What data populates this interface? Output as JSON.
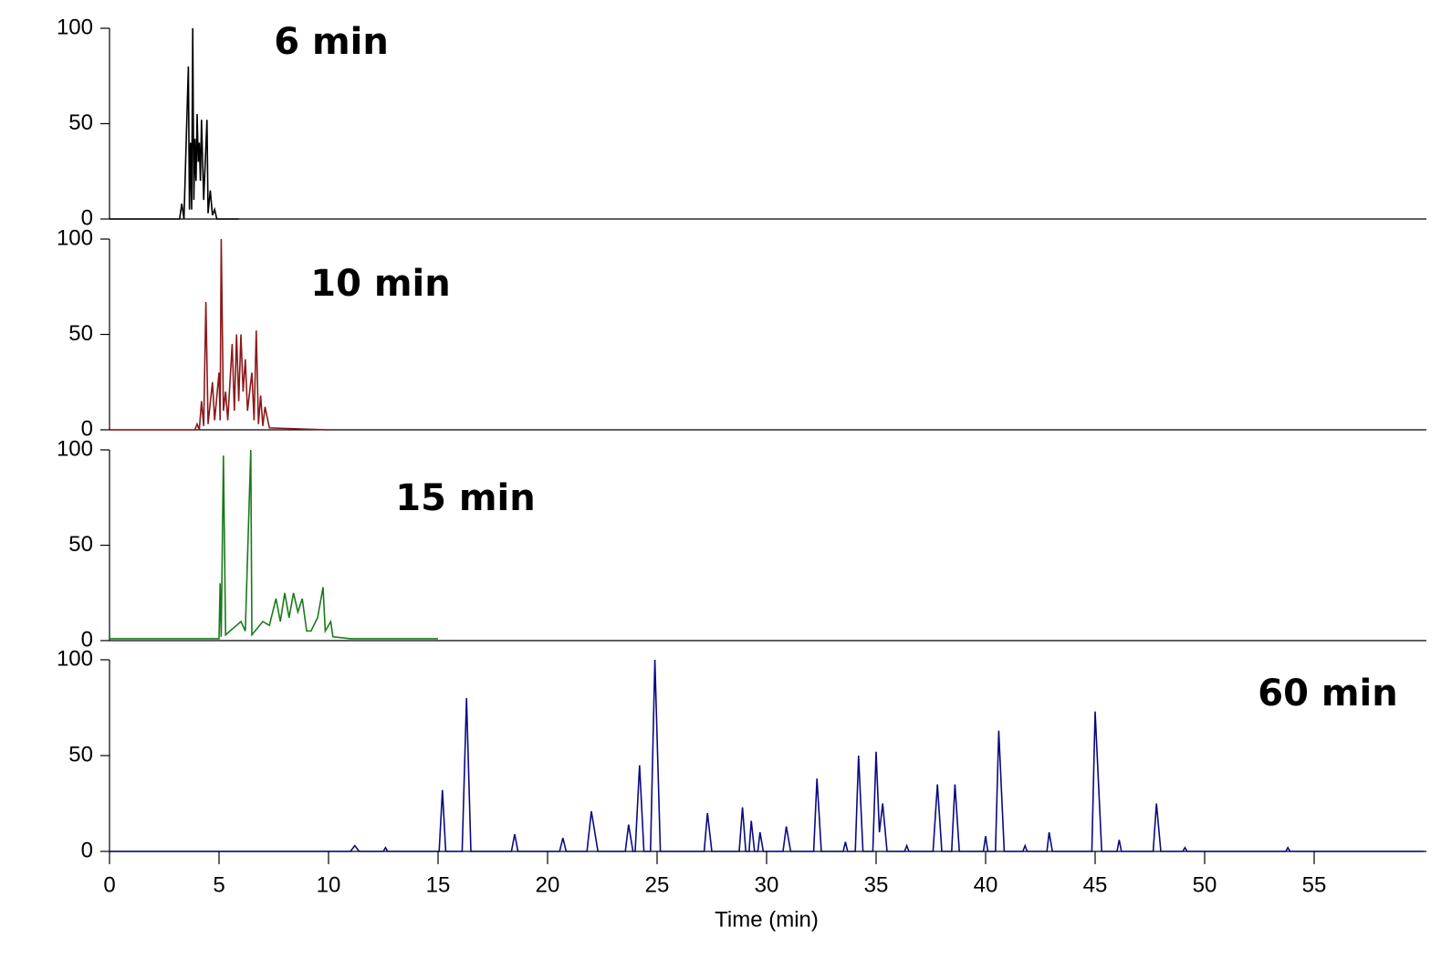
{
  "chart_data": [
    {
      "type": "line",
      "annotation": "6 min",
      "color": "#000000",
      "xlim": [
        0,
        60
      ],
      "ylim": [
        0,
        100
      ],
      "yticks": [
        0,
        50,
        100
      ],
      "x": [
        0,
        3.2,
        3.3,
        3.4,
        3.6,
        3.65,
        3.7,
        3.75,
        3.8,
        3.85,
        3.9,
        3.95,
        4.0,
        4.05,
        4.1,
        4.15,
        4.2,
        4.3,
        4.45,
        4.5,
        4.6,
        4.7,
        4.8,
        4.9,
        5.9
      ],
      "values": [
        0,
        0,
        8,
        0,
        80,
        5,
        40,
        5,
        100,
        10,
        42,
        20,
        55,
        30,
        40,
        20,
        52,
        10,
        52,
        3,
        15,
        2,
        5,
        0,
        0
      ]
    },
    {
      "type": "line",
      "annotation": "10 min",
      "color": "#8b1a1a",
      "xlim": [
        0,
        60
      ],
      "ylim": [
        0,
        100
      ],
      "yticks": [
        0,
        50,
        100
      ],
      "x": [
        0,
        3.9,
        4.0,
        4.1,
        4.2,
        4.3,
        4.4,
        4.5,
        4.7,
        4.8,
        5.0,
        5.05,
        5.1,
        5.2,
        5.3,
        5.4,
        5.6,
        5.7,
        5.8,
        5.9,
        6.0,
        6.1,
        6.2,
        6.3,
        6.5,
        6.6,
        6.7,
        6.8,
        6.9,
        7.0,
        7.1,
        7.3,
        10
      ],
      "values": [
        0,
        0,
        3,
        0,
        15,
        2,
        67,
        3,
        25,
        5,
        30,
        5,
        100,
        10,
        20,
        5,
        45,
        10,
        50,
        15,
        50,
        20,
        37,
        10,
        30,
        5,
        52,
        3,
        18,
        2,
        12,
        1,
        0
      ]
    },
    {
      "type": "line",
      "annotation": "15 min",
      "color": "#1a7a1a",
      "xlim": [
        0,
        60
      ],
      "ylim": [
        0,
        100
      ],
      "yticks": [
        0,
        50,
        100
      ],
      "x": [
        0,
        5.0,
        5.05,
        5.1,
        5.2,
        5.3,
        5.5,
        5.8,
        6.0,
        6.2,
        6.45,
        6.5,
        7.0,
        7.3,
        7.6,
        7.8,
        8.0,
        8.2,
        8.4,
        8.6,
        8.8,
        9.0,
        9.2,
        9.5,
        9.75,
        9.85,
        10.1,
        10.2,
        11,
        15
      ],
      "values": [
        1,
        1,
        30,
        2,
        97,
        3,
        5,
        8,
        10,
        5,
        100,
        3,
        10,
        8,
        22,
        10,
        25,
        12,
        25,
        15,
        22,
        5,
        5,
        12,
        28,
        5,
        10,
        2,
        1,
        1
      ]
    },
    {
      "type": "line",
      "annotation": "60 min",
      "color": "#0a0a80",
      "xlim": [
        0,
        60
      ],
      "ylim": [
        0,
        100
      ],
      "yticks": [
        0,
        50,
        100
      ],
      "xticks": [
        0,
        5,
        10,
        15,
        20,
        25,
        30,
        35,
        40,
        45,
        50,
        55
      ],
      "xlabel": "Time (min)",
      "x": [
        0,
        11.0,
        11.2,
        11.4,
        12.5,
        12.6,
        12.7,
        15.05,
        15.2,
        15.35,
        16.1,
        16.3,
        16.5,
        18.35,
        18.5,
        18.65,
        20.55,
        20.7,
        20.85,
        21.8,
        22.0,
        22.3,
        23.55,
        23.7,
        23.9,
        24.0,
        24.2,
        24.4,
        24.7,
        24.9,
        25.15,
        27.15,
        27.3,
        27.5,
        28.75,
        28.9,
        29.05,
        29.2,
        29.3,
        29.45,
        29.6,
        29.7,
        29.85,
        30.75,
        30.9,
        31.1,
        32.15,
        32.3,
        32.5,
        33.5,
        33.6,
        33.7,
        34.05,
        34.2,
        34.4,
        34.85,
        35.0,
        35.15,
        35.3,
        35.5,
        36.3,
        36.4,
        36.5,
        37.6,
        37.8,
        38.0,
        38.45,
        38.6,
        38.8,
        39.9,
        40.0,
        40.1,
        40.45,
        40.6,
        40.85,
        41.7,
        41.8,
        41.9,
        42.8,
        42.9,
        43.05,
        44.85,
        45.0,
        45.3,
        46.0,
        46.1,
        46.2,
        47.65,
        47.8,
        48.0,
        49.0,
        49.1,
        49.2,
        53.7,
        53.8,
        53.9,
        60
      ],
      "values": [
        0,
        0,
        3,
        0,
        0,
        2,
        0,
        0,
        32,
        0,
        0,
        80,
        0,
        0,
        9,
        0,
        0,
        7,
        0,
        0,
        21,
        0,
        0,
        14,
        0,
        0,
        45,
        0,
        0,
        100,
        0,
        0,
        20,
        0,
        0,
        23,
        0,
        0,
        16,
        0,
        0,
        10,
        0,
        0,
        13,
        0,
        0,
        38,
        0,
        0,
        5,
        0,
        0,
        50,
        0,
        0,
        52,
        10,
        25,
        0,
        0,
        3,
        0,
        0,
        35,
        0,
        0,
        35,
        0,
        0,
        8,
        0,
        0,
        63,
        0,
        0,
        3,
        0,
        0,
        10,
        0,
        0,
        73,
        0,
        0,
        6,
        0,
        0,
        25,
        0,
        0,
        2,
        0,
        0,
        2,
        0,
        0
      ]
    }
  ]
}
